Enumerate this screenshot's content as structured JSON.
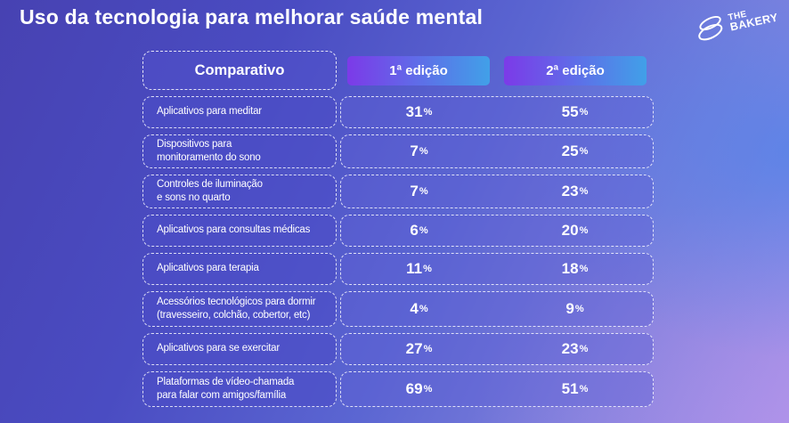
{
  "title": "Uso da tecnologia para melhorar saúde mental",
  "logo": {
    "line1": "THE",
    "line2": "BAKERY"
  },
  "table": {
    "header": {
      "label": "Comparativo",
      "col1": "1ª edição",
      "col2": "2ª edição"
    },
    "unit": "%",
    "rows": [
      {
        "label": "Aplicativos para meditar",
        "v1": "31",
        "v2": "55"
      },
      {
        "label": "Dispositivos para\nmonitoramento do sono",
        "v1": "7",
        "v2": "25"
      },
      {
        "label": "Controles de iluminação\ne sons no quarto",
        "v1": "7",
        "v2": "23"
      },
      {
        "label": "Aplicativos para consultas médicas",
        "v1": "6",
        "v2": "20"
      },
      {
        "label": "Aplicativos para terapia",
        "v1": "11",
        "v2": "18"
      },
      {
        "label": "Acessórios tecnológicos para dormir\n(travesseiro, colchão, cobertor, etc)",
        "v1": "4",
        "v2": "9"
      },
      {
        "label": "Aplicativos para se exercitar",
        "v1": "27",
        "v2": "23"
      },
      {
        "label": "Plataformas de vídeo-chamada\npara falar com amigos/família",
        "v1": "69",
        "v2": "51"
      }
    ]
  },
  "colors": {
    "accent_gradient_from": "#7c3ae8",
    "accent_gradient_to": "#41a0e8",
    "background_top_left": "#4742b2",
    "background_right_blue": "#4082eb",
    "background_bottom_right": "#a08fe6",
    "text": "#ffffff"
  },
  "chart_data": {
    "type": "table",
    "title": "Uso da tecnologia para melhorar saúde mental",
    "categories": [
      "Aplicativos para meditar",
      "Dispositivos para monitoramento do sono",
      "Controles de iluminação e sons no quarto",
      "Aplicativos para consultas médicas",
      "Aplicativos para terapia",
      "Acessórios tecnológicos para dormir (travesseiro, colchão, cobertor, etc)",
      "Aplicativos para se exercitar",
      "Plataformas de vídeo-chamada para falar com amigos/família"
    ],
    "series": [
      {
        "name": "1ª edição",
        "values": [
          31,
          7,
          7,
          6,
          11,
          4,
          27,
          69
        ]
      },
      {
        "name": "2ª edição",
        "values": [
          55,
          25,
          23,
          20,
          18,
          9,
          23,
          51
        ]
      }
    ],
    "unit": "%",
    "layout": "comparison table, labels left, two value columns right"
  }
}
